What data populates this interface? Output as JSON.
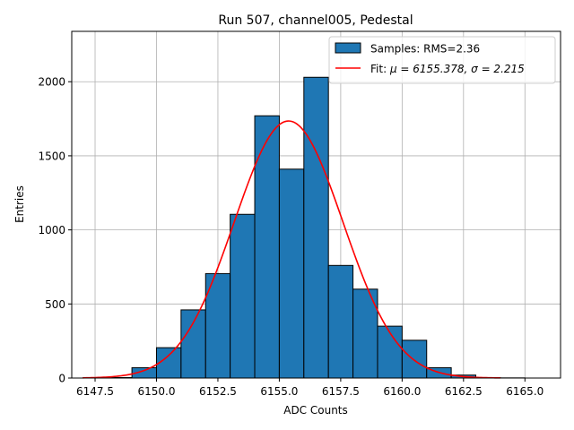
{
  "chart_data": {
    "type": "bar",
    "title": "Run 507, channel005, Pedestal",
    "xlabel": "ADC Counts",
    "ylabel": "Entries",
    "xlim": [
      6146.55,
      6166.45
    ],
    "ylim": [
      0,
      2340
    ],
    "grid": true,
    "legend_position": "top-right",
    "x_ticks": [
      6147.5,
      6150.0,
      6152.5,
      6155.0,
      6157.5,
      6160.0,
      6162.5,
      6165.0
    ],
    "x_tick_labels": [
      "6147.5",
      "6150.0",
      "6152.5",
      "6155.0",
      "6157.5",
      "6160.0",
      "6162.5",
      "6165.0"
    ],
    "y_ticks": [
      0,
      500,
      1000,
      1500,
      2000
    ],
    "y_tick_labels": [
      "0",
      "500",
      "1000",
      "1500",
      "2000"
    ],
    "histogram": {
      "name": "Samples: RMS=2.36",
      "color": "#1f77b4",
      "edge_color": "#000000",
      "bins": [
        {
          "x0": 6147.0,
          "x1": 6148.0,
          "value": 1
        },
        {
          "x0": 6148.0,
          "x1": 6149.0,
          "value": 3
        },
        {
          "x0": 6149.0,
          "x1": 6150.0,
          "value": 70
        },
        {
          "x0": 6150.0,
          "x1": 6151.0,
          "value": 205
        },
        {
          "x0": 6151.0,
          "x1": 6152.0,
          "value": 460
        },
        {
          "x0": 6152.0,
          "x1": 6153.0,
          "value": 705
        },
        {
          "x0": 6153.0,
          "x1": 6154.0,
          "value": 1105
        },
        {
          "x0": 6154.0,
          "x1": 6155.0,
          "value": 1770
        },
        {
          "x0": 6155.0,
          "x1": 6156.0,
          "value": 1410
        },
        {
          "x0": 6156.0,
          "x1": 6157.0,
          "value": 2030
        },
        {
          "x0": 6157.0,
          "x1": 6158.0,
          "value": 760
        },
        {
          "x0": 6158.0,
          "x1": 6159.0,
          "value": 600
        },
        {
          "x0": 6159.0,
          "x1": 6160.0,
          "value": 350
        },
        {
          "x0": 6160.0,
          "x1": 6161.0,
          "value": 255
        },
        {
          "x0": 6161.0,
          "x1": 6162.0,
          "value": 70
        },
        {
          "x0": 6162.0,
          "x1": 6163.0,
          "value": 20
        },
        {
          "x0": 6163.0,
          "x1": 6164.0,
          "value": 2
        },
        {
          "x0": 6164.0,
          "x1": 6165.0,
          "value": 1
        },
        {
          "x0": 6165.0,
          "x1": 6166.0,
          "value": 0
        }
      ]
    },
    "fit": {
      "name_prefix": "Fit: ",
      "name_math": "μ = 6155.378, σ = 2.215",
      "label": "Fit: μ = 6155.378, σ = 2.215",
      "mu": 6155.378,
      "sigma": 2.215,
      "amplitude": 1735,
      "x_range": [
        6147.0,
        6164.0
      ],
      "color": "#ff0000"
    }
  }
}
